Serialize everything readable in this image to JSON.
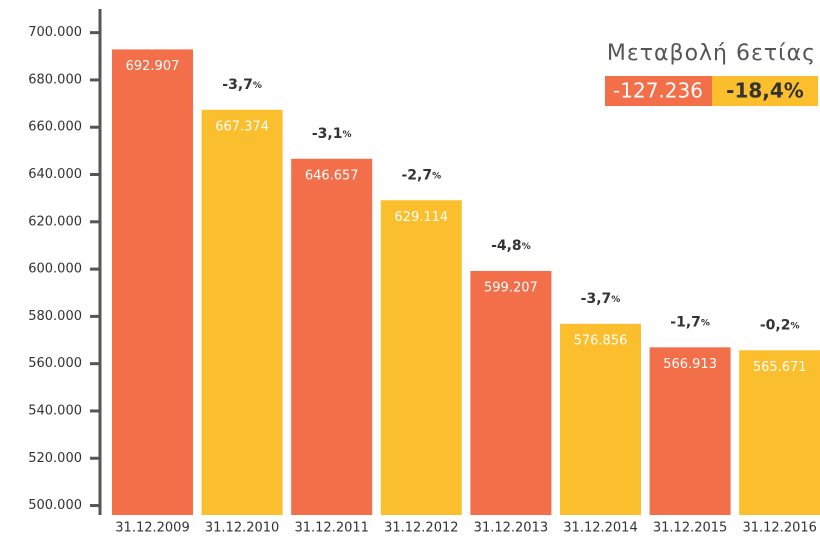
{
  "chart_data": {
    "type": "bar",
    "categories": [
      "31.12.2009",
      "31.12.2010",
      "31.12.2011",
      "31.12.2012",
      "31.12.2013",
      "31.12.2014",
      "31.12.2015",
      "31.12.2016"
    ],
    "values": [
      692907,
      667374,
      646657,
      629114,
      599207,
      576856,
      566913,
      565671
    ],
    "value_labels": [
      "692.907",
      "667.374",
      "646.657",
      "629.114",
      "599.207",
      "576.856",
      "566.913",
      "565.671"
    ],
    "colors": [
      "#f26f4a",
      "#fbbf2e",
      "#f26f4a",
      "#fbbf2e",
      "#f26f4a",
      "#fbbf2e",
      "#f26f4a",
      "#fbbf2e"
    ],
    "change_labels": [
      null,
      "-3,7",
      "-3,1",
      "-2,7",
      "-4,8",
      "-3,7",
      "-1,7",
      "-0,2"
    ],
    "change_unit": "%",
    "ylim": [
      496000,
      710000
    ],
    "yticks": [
      {
        "value": 500000,
        "label": "500.000"
      },
      {
        "value": 520000,
        "label": "520.000"
      },
      {
        "value": 540000,
        "label": "540.000"
      },
      {
        "value": 560000,
        "label": "560.000"
      },
      {
        "value": 580000,
        "label": "580.000"
      },
      {
        "value": 600000,
        "label": "600.000"
      },
      {
        "value": 620000,
        "label": "620.000"
      },
      {
        "value": 640000,
        "label": "640.000"
      },
      {
        "value": 660000,
        "label": "660.000"
      },
      {
        "value": 680000,
        "label": "680.000"
      },
      {
        "value": 700000,
        "label": "700.000"
      }
    ],
    "summary": {
      "title": "Μεταβολή 6ετίας",
      "change": "-127.236",
      "change_color": "#f26f4a",
      "percent": "-18,4%",
      "percent_color": "#fbbf2e"
    }
  }
}
